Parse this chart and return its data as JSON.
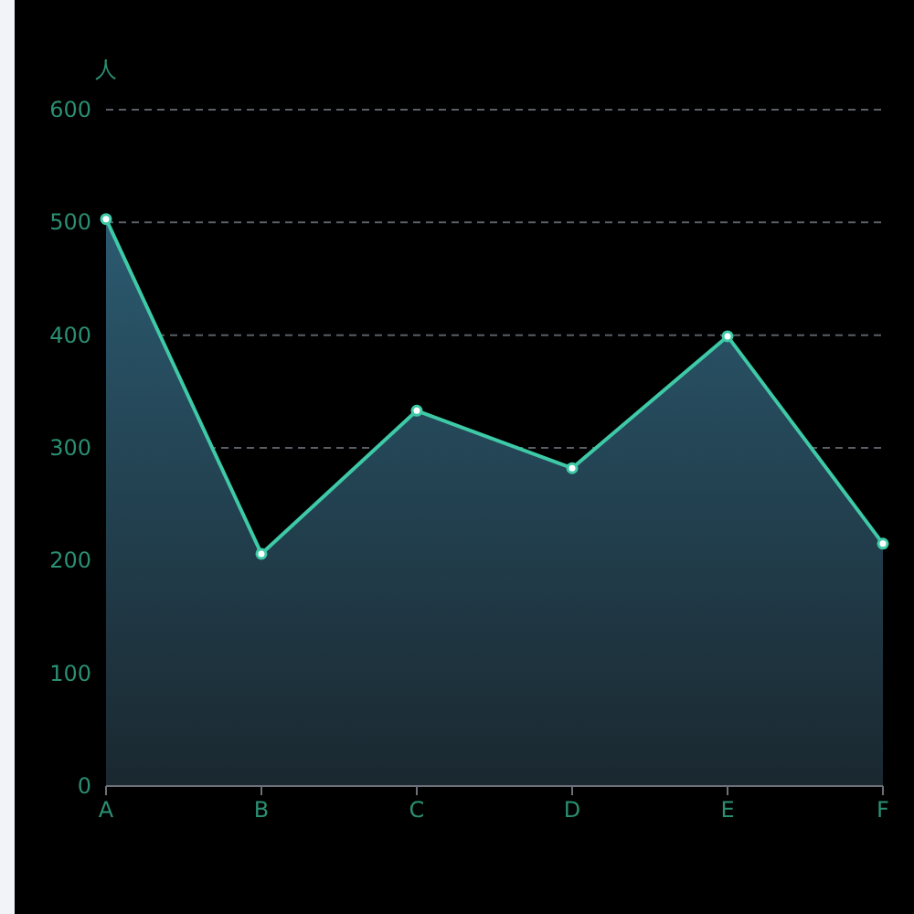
{
  "chart_data": {
    "type": "area",
    "ylabel": "人",
    "categories": [
      "A",
      "B",
      "C",
      "D",
      "E",
      "F"
    ],
    "series": [
      {
        "color": "#3ec9a7",
        "values": [
          503,
          206,
          333,
          282,
          399,
          215
        ]
      }
    ],
    "ylim": [
      0,
      600
    ],
    "yticks": [
      0,
      100,
      200,
      300,
      400,
      500,
      600
    ],
    "grid": "y",
    "marker": "circle",
    "line_style": "solid"
  }
}
